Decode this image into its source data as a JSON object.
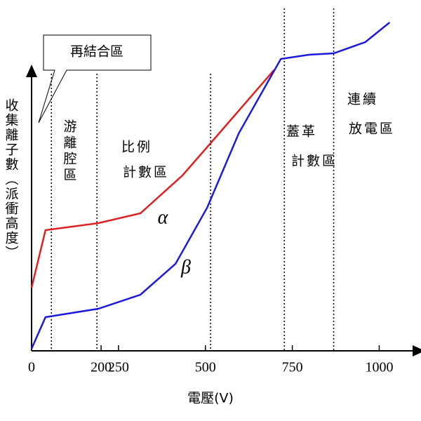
{
  "chart_data": {
    "type": "line",
    "y_label": "收集離子數（派衝高度）",
    "x_label": "電壓(V)",
    "callout": "再結合區",
    "xlim": [
      0,
      1100
    ],
    "ylim": [
      0,
      120
    ],
    "xticks": [
      0,
      200,
      250,
      500,
      750,
      1000
    ],
    "region_boundaries": [
      57,
      188,
      515,
      727,
      869
    ],
    "regions": [
      {
        "lines": [
          "游離腔區"
        ]
      },
      {
        "lines": [
          "比例",
          "計數區"
        ]
      },
      {
        "lines": [
          "蓋革",
          "計數區"
        ]
      },
      {
        "lines": [
          "連續",
          "放電區"
        ]
      }
    ],
    "series": [
      {
        "name": "α",
        "color": "#e02020",
        "x": [
          0,
          40,
          192,
          313,
          434,
          515,
          697
        ],
        "values": [
          22.5,
          43,
          45.5,
          49,
          62.5,
          74,
          100
        ]
      },
      {
        "name": "β",
        "color": "#1a1adf",
        "x": [
          0,
          40,
          192,
          313,
          414,
          505,
          596,
          717,
          798,
          869,
          960,
          1030
        ],
        "values": [
          0.75,
          12,
          15,
          20,
          31,
          51,
          77.5,
          104,
          105.5,
          106,
          110,
          117
        ]
      }
    ]
  }
}
